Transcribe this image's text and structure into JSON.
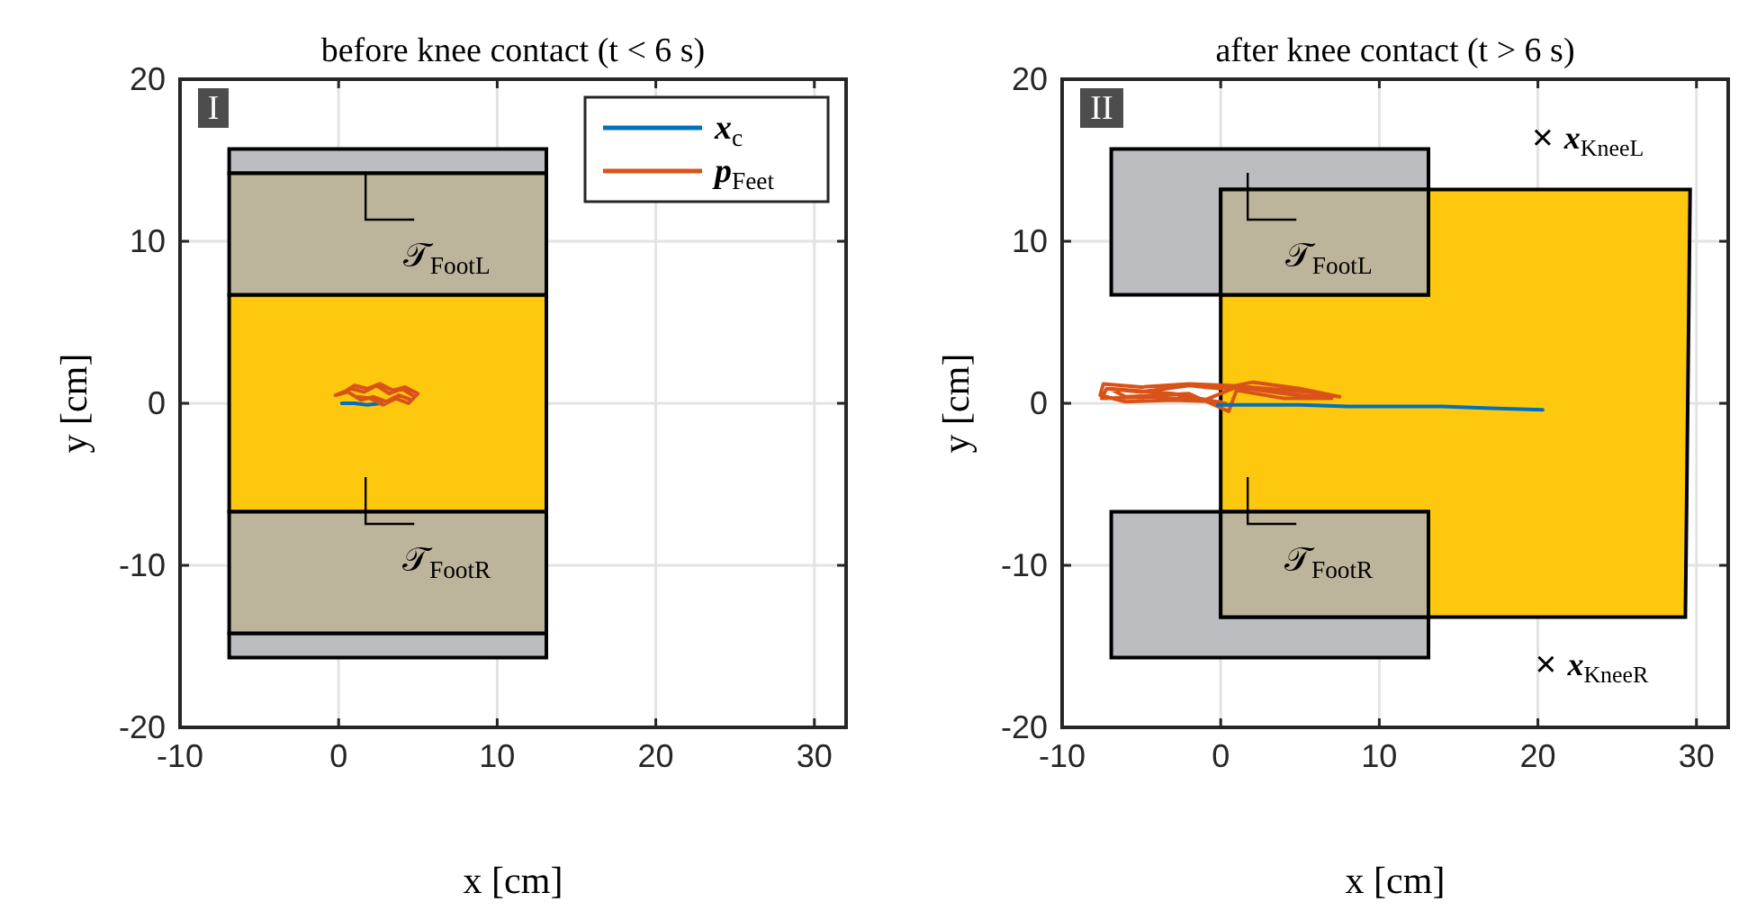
{
  "chart_data": [
    {
      "type": "line",
      "title": "before knee contact (t < 6 s)",
      "xlabel": "x [cm]",
      "ylabel": "y [cm]",
      "xlim": [
        -10,
        32
      ],
      "ylim": [
        -20,
        20
      ],
      "xticks": [
        -10,
        0,
        10,
        20,
        30
      ],
      "yticks": [
        -20,
        -10,
        0,
        10,
        20
      ],
      "grid": true,
      "legend": "top right",
      "series": [
        {
          "type": "area",
          "color": "#bcbdc1",
          "x": [
            -6.9,
            13.1,
            13.1,
            -6.9
          ],
          "values": [
            15.7,
            15.7,
            14.2,
            14.2
          ]
        },
        {
          "type": "area",
          "color": "#bcbdc1",
          "x": [
            -6.9,
            13.1,
            13.1,
            -6.9
          ],
          "values": [
            -14.2,
            -14.2,
            -15.7,
            -15.7
          ]
        },
        {
          "type": "area",
          "color": "#fdc80d",
          "x": [
            -6.9,
            13.1,
            13.1,
            -6.9
          ],
          "values": [
            6.7,
            6.7,
            -6.7,
            -6.7
          ]
        },
        {
          "type": "area",
          "color": "#bdb59b",
          "x": [
            -6.9,
            13.1,
            13.1,
            -6.9
          ],
          "values": [
            14.2,
            14.2,
            6.7,
            6.7
          ]
        },
        {
          "type": "area",
          "color": "#bdb59b",
          "x": [
            -6.9,
            13.1,
            13.1,
            -6.9
          ],
          "values": [
            -6.7,
            -6.7,
            -14.2,
            -14.2
          ]
        },
        {
          "name": "x$_{c}$",
          "color": "#0072bd",
          "x": [
            0.2,
            1.0,
            1.8,
            2.7
          ],
          "values": [
            0.0,
            0.0,
            -0.1,
            0.0
          ]
        },
        {
          "name": "p$_{Feet}$",
          "color": "#d95319",
          "x": [
            0.2,
            1.0,
            1.8,
            2.6,
            3.4,
            4.2,
            5.0,
            4.6,
            3.8,
            3.0,
            2.2,
            1.4,
            0.6,
            -0.2,
            0.8,
            1.6,
            2.4,
            3.2,
            4.0,
            4.8,
            4.4,
            3.6,
            2.8,
            2.0,
            1.2
          ],
          "values": [
            0.6,
            1.1,
            0.9,
            1.2,
            0.8,
            1.0,
            0.6,
            0.2,
            0.5,
            0.1,
            0.4,
            0.2,
            0.7,
            0.5,
            0.9,
            0.7,
            1.1,
            0.6,
            0.9,
            0.4,
            0.0,
            0.3,
            -0.1,
            0.3,
            0.4
          ]
        }
      ],
      "annotations": [
        "I",
        "𝒯$_{FootL}$",
        "𝒯$_{FootR}$"
      ]
    },
    {
      "type": "line",
      "title": "after knee contact (t > 6 s)",
      "xlabel": "x [cm]",
      "ylabel": "y [cm]",
      "xlim": [
        -10,
        32
      ],
      "ylim": [
        -20,
        20
      ],
      "xticks": [
        -10,
        0,
        10,
        20,
        30
      ],
      "yticks": [
        -20,
        -10,
        0,
        10,
        20
      ],
      "grid": true,
      "series": [
        {
          "type": "area",
          "color": "#bcbdc1",
          "x": [
            -6.9,
            13.1,
            13.1,
            0,
            0,
            -6.9
          ],
          "values": [
            15.7,
            15.7,
            13.2,
            13.2,
            6.7,
            6.7
          ]
        },
        {
          "type": "area",
          "color": "#bcbdc1",
          "x": [
            -6.9,
            0,
            0,
            13.1,
            13.1,
            -6.9
          ],
          "values": [
            -6.7,
            -6.7,
            -13.2,
            -13.2,
            -15.7,
            -15.7
          ]
        },
        {
          "type": "area",
          "color": "#fdc80d",
          "x": [
            0,
            13.1,
            13.1,
            29.6,
            29.3,
            13.1,
            13.1,
            0
          ],
          "values": [
            6.7,
            6.7,
            13.2,
            13.2,
            -13.2,
            -13.2,
            -6.7,
            -6.7
          ]
        },
        {
          "type": "area",
          "color": "#bdb59b",
          "x": [
            0,
            13.1,
            13.1,
            0
          ],
          "values": [
            13.2,
            13.2,
            6.7,
            6.7
          ]
        },
        {
          "type": "area",
          "color": "#bdb59b",
          "x": [
            0,
            13.1,
            13.1,
            0
          ],
          "values": [
            -6.7,
            -6.7,
            -13.2,
            -13.2
          ]
        },
        {
          "color": "#d95319",
          "x": [
            0,
            -3,
            -6,
            -7.6,
            -7.4,
            -5,
            -2,
            0.5,
            3,
            5.5,
            7.5,
            5,
            2,
            0,
            -2,
            -5,
            -7.2,
            -7.5,
            -4,
            -1,
            1,
            4,
            7,
            4,
            1,
            0.5,
            -2,
            -6,
            -7,
            -3,
            0.3
          ],
          "values": [
            0.1,
            0.2,
            0.1,
            0.5,
            1.2,
            1.0,
            1.2,
            1.1,
            0.9,
            0.7,
            0.4,
            0.9,
            1.3,
            0.9,
            1.1,
            0.7,
            0.9,
            0.3,
            0.4,
            0.2,
            1.0,
            0.6,
            0.3,
            0.3,
            0.8,
            -0.5,
            0.6,
            0.4,
            0.9,
            0.6,
            0.0
          ]
        },
        {
          "color": "#0072bd",
          "x": [
            -0.2,
            2,
            5,
            8,
            11,
            14,
            17,
            20.3
          ],
          "values": [
            -0.1,
            -0.1,
            -0.1,
            -0.2,
            -0.2,
            -0.2,
            -0.3,
            -0.4
          ]
        },
        {
          "type": "scatter",
          "name": "x$_{KneeL}$",
          "color": "#000000",
          "marker": "cross",
          "x": [
            20.3
          ],
          "values": [
            16.4
          ]
        },
        {
          "type": "scatter",
          "name": "x$_{KneeR}$",
          "color": "#000000",
          "marker": "cross",
          "x": [
            20.5
          ],
          "values": [
            -16.1
          ]
        }
      ],
      "annotations": [
        "II",
        "𝒯$_{FootL}$",
        "𝒯$_{FootR}$"
      ]
    }
  ]
}
